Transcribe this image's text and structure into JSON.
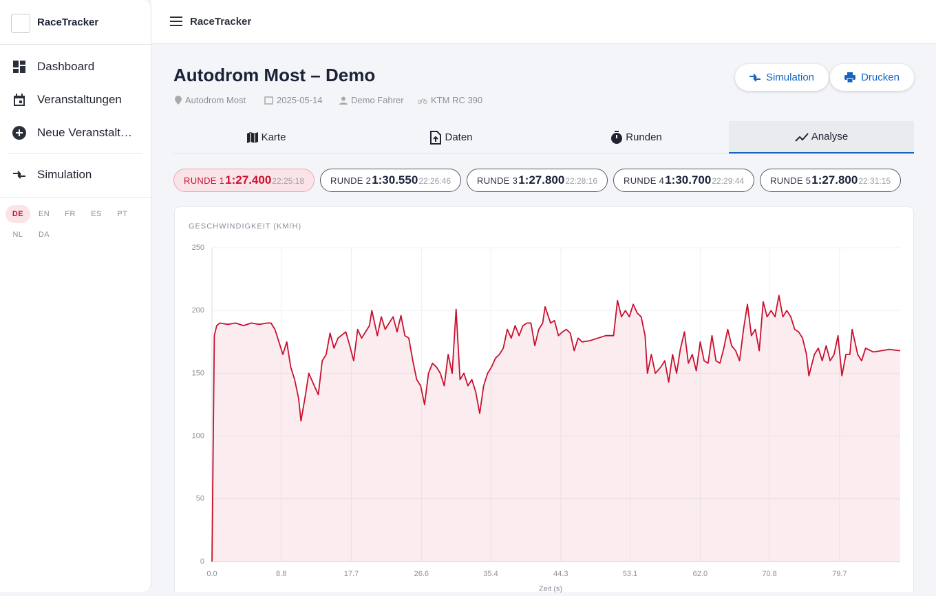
{
  "sidebar": {
    "brand": "RaceTracker",
    "nav": [
      "Dashboard",
      "Veranstaltungen",
      "Neue Veranstalt…"
    ],
    "simulation": "Simulation",
    "languages": [
      "DE",
      "EN",
      "FR",
      "ES",
      "PT",
      "NL",
      "DA"
    ]
  },
  "topbar": {
    "title": "RaceTracker"
  },
  "header": {
    "title": "Autodrom Most – Demo",
    "meta": [
      "Autodrom Most",
      "2025-05-14",
      "Demo Fahrer",
      "KTM RC 390"
    ],
    "buttons": [
      "Simulation",
      "Drucken"
    ]
  },
  "tabs": [
    "Karte",
    "Daten",
    "Runden",
    "Analyse"
  ],
  "laps": [
    {
      "label": "RUNDE 1",
      "time": "1:27.400",
      "clock": "22:25:18"
    },
    {
      "label": "RUNDE 2",
      "time": "1:30.550",
      "clock": "22:26:46"
    },
    {
      "label": "RUNDE 3",
      "time": "1:27.800",
      "clock": "22:28:16"
    },
    {
      "label": "RUNDE 4",
      "time": "1:30.700",
      "clock": "22:29:44"
    },
    {
      "label": "RUNDE 5",
      "time": "1:27.800",
      "clock": "22:31:15"
    }
  ],
  "chart_data": {
    "type": "area",
    "ylabel": "GESCHWINDIGKEIT (KM/H)",
    "xlabel": "Zeit (s)",
    "grid": true,
    "xlim": [
      0,
      87.4
    ],
    "ylim": [
      0,
      250
    ],
    "xticks": [
      {
        "value": 0,
        "label": "0.0"
      },
      8.8,
      17.7,
      26.6,
      35.4,
      44.3,
      53.1,
      {
        "value": 62,
        "label": "62.0"
      },
      70.8,
      79.7
    ],
    "yticks": [
      0,
      50,
      100,
      150,
      200,
      250
    ],
    "x": [
      0,
      0.3,
      0.6,
      1,
      2,
      3,
      4,
      5,
      6,
      7,
      7.5,
      8,
      8.5,
      9,
      9.5,
      10,
      10.5,
      11,
      11.3,
      11.8,
      12.3,
      13,
      13.5,
      14,
      14.5,
      15,
      15.5,
      16,
      17,
      17.5,
      18,
      18.5,
      19,
      20,
      20.3,
      21,
      21.5,
      22,
      22.5,
      23,
      23.5,
      24,
      24.5,
      25,
      25.5,
      26,
      26.5,
      27,
      27.5,
      28,
      28.5,
      29,
      29.5,
      30,
      30.5,
      31,
      31.5,
      32,
      32.5,
      33,
      33.5,
      34,
      34.5,
      35,
      35.5,
      36,
      36.5,
      37,
      37.5,
      38,
      38.5,
      39,
      39.5,
      40,
      40.5,
      41,
      41.5,
      42,
      42.3,
      43,
      43.5,
      44,
      44.5,
      45,
      45.5,
      46,
      46.5,
      47,
      48,
      49,
      50,
      51,
      51.5,
      52,
      52.5,
      53,
      53.5,
      54,
      54.5,
      55,
      55.3,
      55.8,
      56.3,
      57,
      57.5,
      58,
      58.5,
      59,
      59.5,
      60,
      60.5,
      61,
      61.5,
      62,
      62.5,
      63,
      63.5,
      64,
      64.5,
      65,
      65.5,
      66,
      66.5,
      67,
      67.5,
      68,
      68.5,
      69,
      69.5,
      70,
      70.5,
      71,
      71.5,
      72,
      72.5,
      73,
      73.5,
      74,
      74.5,
      75,
      75.5,
      75.8,
      76.5,
      77,
      77.5,
      78,
      78.5,
      79,
      79.5,
      80,
      80.5,
      81,
      81.3,
      82,
      82.5,
      83,
      84,
      85,
      86,
      87.4
    ],
    "series": [
      {
        "color": "#c8102e",
        "values": [
          0,
          180,
          188,
          190,
          189,
          190,
          188,
          190,
          189,
          190,
          190,
          185,
          175,
          165,
          175,
          155,
          145,
          130,
          112,
          130,
          150,
          140,
          133,
          160,
          165,
          182,
          170,
          178,
          183,
          172,
          160,
          185,
          178,
          188,
          200,
          180,
          195,
          185,
          190,
          195,
          183,
          196,
          180,
          178,
          160,
          145,
          140,
          125,
          150,
          158,
          155,
          150,
          140,
          165,
          150,
          201,
          145,
          150,
          140,
          145,
          135,
          118,
          140,
          150,
          155,
          162,
          165,
          170,
          185,
          178,
          188,
          180,
          188,
          190,
          190,
          172,
          185,
          190,
          203,
          190,
          192,
          180,
          183,
          185,
          182,
          168,
          178,
          175,
          176,
          178,
          180,
          180,
          208,
          195,
          200,
          195,
          205,
          198,
          195,
          180,
          150,
          165,
          150,
          155,
          160,
          143,
          165,
          150,
          170,
          183,
          158,
          165,
          152,
          175,
          160,
          158,
          180,
          160,
          158,
          170,
          185,
          172,
          168,
          160,
          185,
          205,
          180,
          185,
          168,
          207,
          195,
          200,
          195,
          212,
          195,
          200,
          195,
          185,
          183,
          178,
          165,
          148,
          165,
          170,
          160,
          172,
          160,
          165,
          180,
          148,
          165,
          165,
          185,
          165,
          160,
          170,
          167,
          168,
          169,
          168
        ]
      }
    ]
  }
}
